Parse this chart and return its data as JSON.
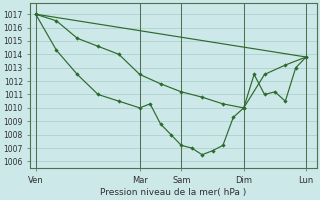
{
  "title": "Pression niveau de la mer( hPa )",
  "bg_color": "#cce8e8",
  "grid_color": "#aacccc",
  "line_color": "#2d6a2d",
  "ylim": [
    1005.5,
    1017.8
  ],
  "yticks": [
    1006,
    1007,
    1008,
    1009,
    1010,
    1011,
    1012,
    1013,
    1014,
    1015,
    1016,
    1017
  ],
  "xtick_labels": [
    "Ven",
    "Mar",
    "Sam",
    "Dim",
    "Lun"
  ],
  "xtick_positions": [
    0,
    10,
    14,
    20,
    26
  ],
  "vline_positions": [
    0,
    10,
    14,
    20,
    26
  ],
  "xlim": [
    -0.5,
    27
  ],
  "line1_x": [
    0,
    26
  ],
  "line1_y": [
    1017,
    1013.8
  ],
  "line2_x": [
    0,
    2,
    4,
    6,
    8,
    10,
    12,
    14,
    16,
    18,
    20,
    22,
    24,
    26
  ],
  "line2_y": [
    1017,
    1016.5,
    1015.2,
    1014.6,
    1014.0,
    1012.5,
    1011.8,
    1011.2,
    1010.8,
    1010.3,
    1010.0,
    1012.5,
    1013.2,
    1013.8
  ],
  "line3_x": [
    0,
    2,
    4,
    6,
    8,
    10,
    11,
    12,
    13,
    14,
    15,
    16,
    17,
    18,
    19,
    20,
    21,
    22,
    23,
    24,
    25,
    26
  ],
  "line3_y": [
    1017,
    1014.3,
    1012.5,
    1011.0,
    1010.5,
    1010.0,
    1010.3,
    1008.8,
    1008.0,
    1007.2,
    1007.0,
    1006.5,
    1006.8,
    1007.2,
    1009.3,
    1010.0,
    1012.5,
    1011.0,
    1011.2,
    1010.5,
    1013.0,
    1013.8
  ]
}
